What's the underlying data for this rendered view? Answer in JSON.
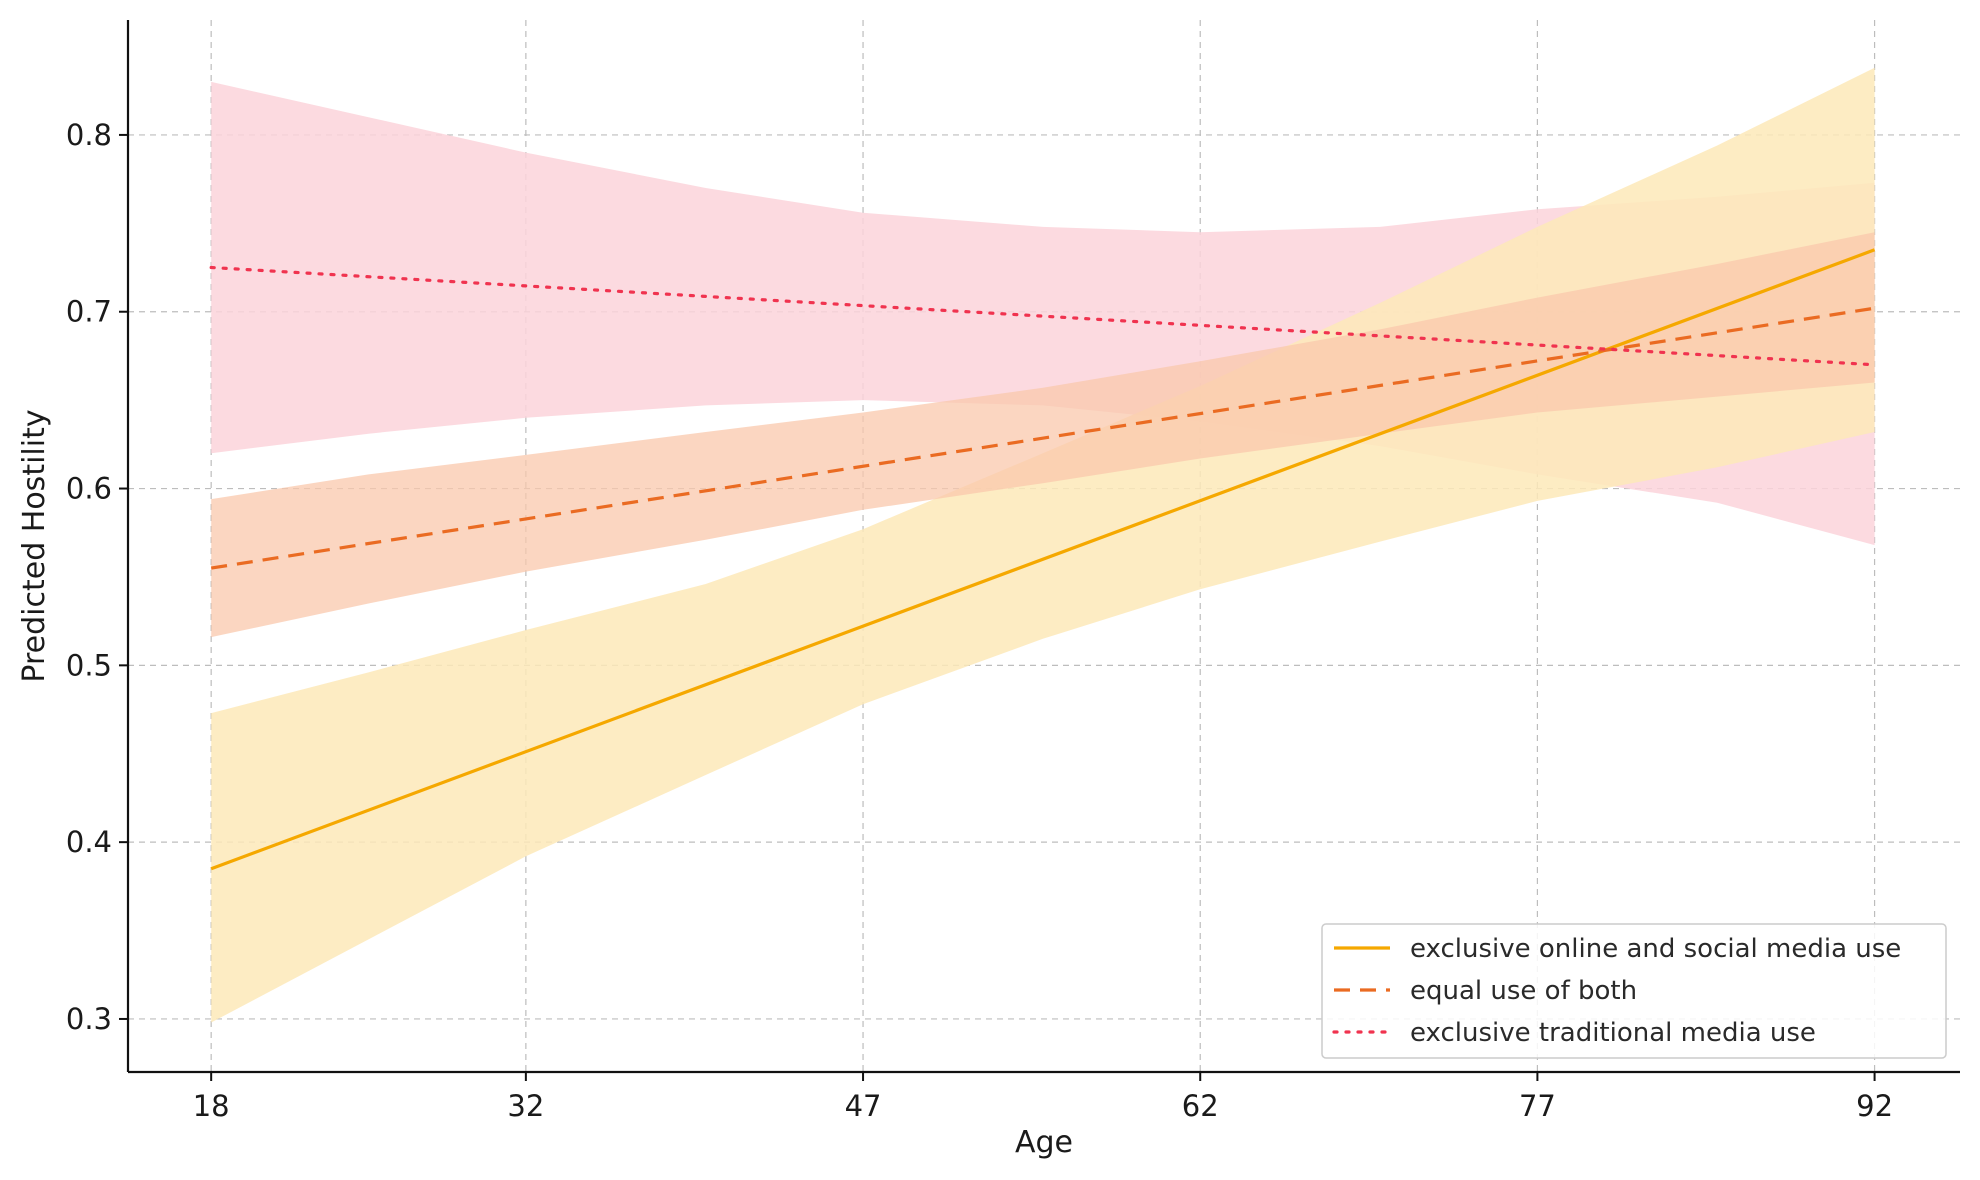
{
  "chart_data": {
    "type": "line",
    "xlabel": "Age",
    "ylabel": "Predicted Hostility",
    "x_ticks": [
      18,
      32,
      47,
      62,
      77,
      92
    ],
    "y_ticks": [
      0.3,
      0.4,
      0.5,
      0.6,
      0.7,
      0.8
    ],
    "xlim": [
      14.3,
      95.8
    ],
    "ylim": [
      0.27,
      0.865
    ],
    "grid": true,
    "legend_position": "bottom-right",
    "series": [
      {
        "name": "exclusive online and social media use",
        "color": "#f5a800",
        "band_color": "#fde9b8",
        "linestyle": "solid",
        "x": [
          18,
          92
        ],
        "y": [
          0.385,
          0.735
        ],
        "band_x": [
          18,
          25,
          32,
          40,
          47,
          55,
          62,
          70,
          77,
          85,
          92
        ],
        "band_lower": [
          0.298,
          0.345,
          0.392,
          0.438,
          0.478,
          0.515,
          0.543,
          0.57,
          0.593,
          0.612,
          0.632
        ],
        "band_upper": [
          0.473,
          0.496,
          0.52,
          0.546,
          0.577,
          0.62,
          0.658,
          0.705,
          0.748,
          0.794,
          0.838
        ]
      },
      {
        "name": "equal use of both",
        "color": "#ea6b22",
        "band_color": "#f9c8ac",
        "linestyle": "dashed",
        "x": [
          18,
          92
        ],
        "y": [
          0.555,
          0.702
        ],
        "band_x": [
          18,
          25,
          32,
          40,
          47,
          55,
          62,
          70,
          77,
          85,
          92
        ],
        "band_lower": [
          0.516,
          0.535,
          0.553,
          0.571,
          0.588,
          0.603,
          0.617,
          0.631,
          0.643,
          0.652,
          0.66
        ],
        "band_upper": [
          0.594,
          0.608,
          0.619,
          0.632,
          0.643,
          0.657,
          0.672,
          0.69,
          0.708,
          0.727,
          0.745
        ]
      },
      {
        "name": "exclusive traditional media use",
        "color": "#f0334f",
        "band_color": "#fcd3da",
        "linestyle": "dotted",
        "x": [
          18,
          92
        ],
        "y": [
          0.725,
          0.67
        ],
        "band_x": [
          18,
          25,
          32,
          40,
          47,
          55,
          62,
          70,
          77,
          85,
          92
        ],
        "band_lower": [
          0.62,
          0.631,
          0.64,
          0.647,
          0.65,
          0.647,
          0.638,
          0.624,
          0.608,
          0.592,
          0.568
        ],
        "band_upper": [
          0.83,
          0.81,
          0.79,
          0.77,
          0.756,
          0.748,
          0.745,
          0.748,
          0.758,
          0.765,
          0.773
        ]
      }
    ]
  }
}
